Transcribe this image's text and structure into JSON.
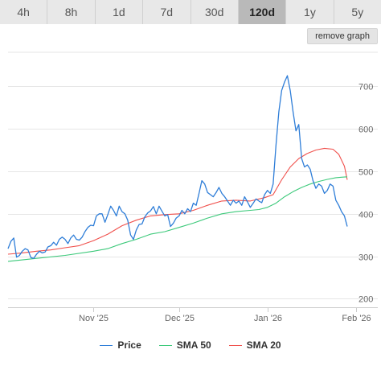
{
  "tabs": [
    {
      "label": "4h",
      "active": false
    },
    {
      "label": "8h",
      "active": false
    },
    {
      "label": "1d",
      "active": false
    },
    {
      "label": "7d",
      "active": false
    },
    {
      "label": "30d",
      "active": false
    },
    {
      "label": "120d",
      "active": true
    },
    {
      "label": "1y",
      "active": false
    },
    {
      "label": "5y",
      "active": false
    }
  ],
  "remove_graph_label": "remove graph",
  "colors": {
    "price": "#2f7ed8",
    "sma50": "#3cc97a",
    "sma20": "#f0504c",
    "grid": "#e6e6e6",
    "axis_text": "#666666"
  },
  "chart_data": {
    "type": "line",
    "x_dates": [
      "2025-10-06",
      "2026-02-03"
    ],
    "x_ticks": [
      {
        "label": "Nov '25",
        "day": 30
      },
      {
        "label": "Dec '25",
        "day": 60
      },
      {
        "label": "Jan '26",
        "day": 91
      },
      {
        "label": "Feb '26",
        "day": 122
      }
    ],
    "y_ticks": [
      200,
      300,
      400,
      500,
      600,
      700
    ],
    "ylim": [
      180,
      780
    ],
    "grid": "horizontal",
    "legend_position": "bottom",
    "series": [
      {
        "name": "Price",
        "color_key": "price",
        "points": [
          [
            0,
            318
          ],
          [
            1,
            335
          ],
          [
            2,
            343
          ],
          [
            3,
            298
          ],
          [
            4,
            302
          ],
          [
            5,
            312
          ],
          [
            6,
            318
          ],
          [
            7,
            315
          ],
          [
            8,
            297
          ],
          [
            9,
            295
          ],
          [
            10,
            305
          ],
          [
            11,
            312
          ],
          [
            12,
            308
          ],
          [
            13,
            310
          ],
          [
            14,
            322
          ],
          [
            15,
            325
          ],
          [
            16,
            333
          ],
          [
            17,
            326
          ],
          [
            18,
            340
          ],
          [
            19,
            345
          ],
          [
            20,
            340
          ],
          [
            21,
            330
          ],
          [
            22,
            343
          ],
          [
            23,
            350
          ],
          [
            24,
            340
          ],
          [
            25,
            338
          ],
          [
            26,
            345
          ],
          [
            27,
            358
          ],
          [
            28,
            368
          ],
          [
            29,
            373
          ],
          [
            30,
            372
          ],
          [
            31,
            395
          ],
          [
            32,
            400
          ],
          [
            33,
            400
          ],
          [
            34,
            380
          ],
          [
            35,
            398
          ],
          [
            36,
            418
          ],
          [
            37,
            408
          ],
          [
            38,
            395
          ],
          [
            39,
            418
          ],
          [
            40,
            405
          ],
          [
            41,
            400
          ],
          [
            42,
            385
          ],
          [
            43,
            350
          ],
          [
            44,
            340
          ],
          [
            45,
            362
          ],
          [
            46,
            375
          ],
          [
            47,
            376
          ],
          [
            48,
            393
          ],
          [
            49,
            402
          ],
          [
            50,
            407
          ],
          [
            51,
            417
          ],
          [
            52,
            400
          ],
          [
            53,
            418
          ],
          [
            54,
            406
          ],
          [
            55,
            395
          ],
          [
            56,
            398
          ],
          [
            57,
            370
          ],
          [
            58,
            378
          ],
          [
            59,
            390
          ],
          [
            60,
            395
          ],
          [
            61,
            408
          ],
          [
            62,
            400
          ],
          [
            63,
            412
          ],
          [
            64,
            405
          ],
          [
            65,
            425
          ],
          [
            66,
            420
          ],
          [
            67,
            448
          ],
          [
            68,
            478
          ],
          [
            69,
            470
          ],
          [
            70,
            450
          ],
          [
            71,
            445
          ],
          [
            72,
            440
          ],
          [
            73,
            450
          ],
          [
            74,
            462
          ],
          [
            75,
            448
          ],
          [
            76,
            440
          ],
          [
            77,
            430
          ],
          [
            78,
            420
          ],
          [
            79,
            432
          ],
          [
            80,
            425
          ],
          [
            81,
            430
          ],
          [
            82,
            420
          ],
          [
            83,
            440
          ],
          [
            84,
            428
          ],
          [
            85,
            415
          ],
          [
            86,
            425
          ],
          [
            87,
            435
          ],
          [
            88,
            430
          ],
          [
            89,
            426
          ],
          [
            90,
            445
          ],
          [
            91,
            455
          ],
          [
            92,
            448
          ],
          [
            93,
            470
          ],
          [
            94,
            560
          ],
          [
            95,
            640
          ],
          [
            96,
            690
          ],
          [
            97,
            710
          ],
          [
            98,
            725
          ],
          [
            99,
            690
          ],
          [
            100,
            640
          ],
          [
            101,
            595
          ],
          [
            102,
            610
          ],
          [
            103,
            530
          ],
          [
            104,
            510
          ],
          [
            105,
            515
          ],
          [
            106,
            505
          ],
          [
            107,
            478
          ],
          [
            108,
            460
          ],
          [
            109,
            470
          ],
          [
            110,
            465
          ],
          [
            111,
            448
          ],
          [
            112,
            455
          ],
          [
            113,
            470
          ],
          [
            114,
            465
          ],
          [
            115,
            432
          ],
          [
            116,
            420
          ],
          [
            117,
            405
          ],
          [
            118,
            395
          ],
          [
            119,
            370
          ]
        ]
      },
      {
        "name": "SMA 50",
        "color_key": "sma50",
        "points": [
          [
            0,
            288
          ],
          [
            10,
            295
          ],
          [
            20,
            302
          ],
          [
            30,
            312
          ],
          [
            35,
            318
          ],
          [
            40,
            330
          ],
          [
            45,
            340
          ],
          [
            50,
            352
          ],
          [
            55,
            358
          ],
          [
            60,
            368
          ],
          [
            65,
            378
          ],
          [
            70,
            390
          ],
          [
            75,
            400
          ],
          [
            80,
            405
          ],
          [
            85,
            408
          ],
          [
            88,
            410
          ],
          [
            91,
            415
          ],
          [
            94,
            425
          ],
          [
            97,
            440
          ],
          [
            100,
            452
          ],
          [
            103,
            462
          ],
          [
            106,
            470
          ],
          [
            109,
            476
          ],
          [
            112,
            481
          ],
          [
            115,
            485
          ],
          [
            117,
            486
          ],
          [
            119,
            487
          ]
        ]
      },
      {
        "name": "SMA 20",
        "color_key": "sma20",
        "points": [
          [
            0,
            305
          ],
          [
            5,
            308
          ],
          [
            10,
            312
          ],
          [
            15,
            315
          ],
          [
            20,
            320
          ],
          [
            25,
            325
          ],
          [
            30,
            337
          ],
          [
            35,
            352
          ],
          [
            40,
            372
          ],
          [
            45,
            385
          ],
          [
            50,
            395
          ],
          [
            55,
            398
          ],
          [
            60,
            400
          ],
          [
            65,
            408
          ],
          [
            70,
            420
          ],
          [
            75,
            430
          ],
          [
            80,
            432
          ],
          [
            85,
            430
          ],
          [
            90,
            438
          ],
          [
            93,
            445
          ],
          [
            96,
            480
          ],
          [
            99,
            510
          ],
          [
            102,
            530
          ],
          [
            105,
            542
          ],
          [
            108,
            550
          ],
          [
            111,
            554
          ],
          [
            114,
            552
          ],
          [
            116,
            540
          ],
          [
            118,
            512
          ],
          [
            119,
            480
          ]
        ]
      }
    ]
  }
}
